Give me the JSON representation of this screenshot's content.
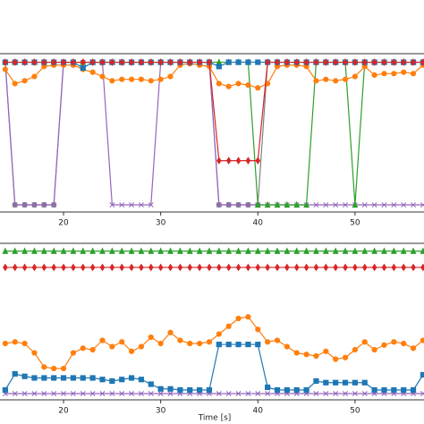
{
  "chart_data": [
    {
      "type": "line",
      "x": [
        14,
        15,
        16,
        17,
        18,
        19,
        20,
        21,
        22,
        23,
        24,
        25,
        26,
        27,
        28,
        29,
        30,
        31,
        32,
        33,
        34,
        35,
        36,
        37,
        38,
        39,
        40,
        41,
        42,
        43,
        44,
        45,
        46,
        47,
        48,
        49,
        50,
        51,
        52,
        53,
        54,
        55,
        56,
        57
      ],
      "xlim": [
        13.46,
        57.1
      ],
      "xticks": [
        20,
        30,
        40,
        50
      ],
      "ylim": [
        -0.05,
        1.06
      ],
      "series": [
        {
          "color": "#7f7f7f",
          "marker": "circle",
          "values": [
            1,
            0,
            0,
            0,
            0,
            0,
            1,
            1,
            1,
            1,
            1,
            1,
            1,
            1,
            1,
            1,
            1,
            1,
            1,
            1,
            1,
            1,
            0,
            0,
            0,
            0,
            0,
            1,
            1,
            1,
            1,
            1,
            1,
            1,
            1,
            1,
            1,
            1,
            1,
            1,
            1,
            1,
            1,
            1
          ]
        },
        {
          "color": "#9467bd",
          "marker": "x",
          "values": [
            1,
            0,
            0,
            0,
            0,
            0,
            1,
            1,
            1,
            1,
            1,
            0,
            0,
            0,
            0,
            0,
            1,
            1,
            1,
            1,
            1,
            1,
            0,
            0,
            0,
            0,
            0,
            0,
            0,
            0,
            0,
            0,
            0,
            0,
            0,
            0,
            0,
            0,
            0,
            0,
            0,
            0,
            0,
            0
          ]
        },
        {
          "color": "#2ca02c",
          "marker": "triangle",
          "values": [
            1,
            1,
            1,
            1,
            1,
            1,
            1,
            1,
            1,
            1,
            1,
            1,
            1,
            1,
            1,
            1,
            1,
            1,
            1,
            1,
            1,
            1,
            1,
            1,
            1,
            1,
            0,
            0,
            0,
            0,
            0,
            0,
            1,
            1,
            1,
            1,
            0,
            1,
            1,
            1,
            1,
            1,
            1,
            1
          ]
        },
        {
          "color": "#ff7f0e",
          "marker": "circle",
          "values": [
            0.95,
            0.85,
            0.87,
            0.9,
            0.97,
            0.98,
            0.98,
            0.98,
            0.95,
            0.93,
            0.9,
            0.87,
            0.88,
            0.88,
            0.88,
            0.87,
            0.88,
            0.9,
            0.98,
            0.99,
            0.98,
            0.97,
            0.85,
            0.83,
            0.85,
            0.84,
            0.82,
            0.85,
            0.97,
            0.98,
            0.98,
            0.97,
            0.87,
            0.88,
            0.87,
            0.88,
            0.9,
            0.97,
            0.91,
            0.92,
            0.92,
            0.93,
            0.92,
            0.98
          ]
        },
        {
          "color": "#1f77b4",
          "marker": "square",
          "values": [
            1,
            1,
            1,
            1,
            1,
            1,
            1,
            1,
            0.96,
            1,
            1,
            1,
            1,
            1,
            1,
            1,
            1,
            1,
            1,
            1,
            1,
            1,
            0.97,
            1,
            1,
            1,
            1,
            1,
            1,
            1,
            1,
            1,
            1,
            1,
            1,
            1,
            1,
            1,
            1,
            1,
            1,
            1,
            1,
            1
          ]
        },
        {
          "color": "#d62728",
          "marker": "diamond",
          "values": [
            1,
            1,
            1,
            1,
            1,
            1,
            1,
            1,
            1,
            1,
            1,
            1,
            1,
            1,
            1,
            1,
            1,
            1,
            1,
            1,
            1,
            1,
            0.31,
            0.31,
            0.31,
            0.31,
            0.31,
            1,
            1,
            1,
            1,
            1,
            1,
            1,
            1,
            1,
            1,
            1,
            1,
            1,
            1,
            1,
            1,
            1
          ]
        }
      ]
    },
    {
      "type": "line",
      "xlabel": "Time [s]",
      "x": [
        14,
        15,
        16,
        17,
        18,
        19,
        20,
        21,
        22,
        23,
        24,
        25,
        26,
        27,
        28,
        29,
        30,
        31,
        32,
        33,
        34,
        35,
        36,
        37,
        38,
        39,
        40,
        41,
        42,
        43,
        44,
        45,
        46,
        47,
        48,
        49,
        50,
        51,
        52,
        53,
        54,
        55,
        56,
        57
      ],
      "xlim": [
        13.46,
        57.1
      ],
      "xticks": [
        20,
        30,
        40,
        50
      ],
      "ylim": [
        0,
        1
      ],
      "series": [
        {
          "color": "#9467bd",
          "marker": "x",
          "values": [
            0.04,
            0.04,
            0.04,
            0.04,
            0.04,
            0.04,
            0.04,
            0.04,
            0.04,
            0.04,
            0.04,
            0.04,
            0.04,
            0.04,
            0.04,
            0.04,
            0.04,
            0.04,
            0.04,
            0.04,
            0.04,
            0.04,
            0.04,
            0.04,
            0.04,
            0.04,
            0.04,
            0.04,
            0.04,
            0.04,
            0.04,
            0.04,
            0.04,
            0.04,
            0.04,
            0.04,
            0.04,
            0.04,
            0.04,
            0.04,
            0.04,
            0.04,
            0.04,
            0.04
          ]
        },
        {
          "color": "#2ca02c",
          "marker": "triangle",
          "values": [
            0.95,
            0.95,
            0.95,
            0.95,
            0.95,
            0.95,
            0.95,
            0.95,
            0.95,
            0.95,
            0.95,
            0.95,
            0.95,
            0.95,
            0.95,
            0.95,
            0.95,
            0.95,
            0.95,
            0.95,
            0.95,
            0.95,
            0.95,
            0.95,
            0.95,
            0.95,
            0.95,
            0.95,
            0.95,
            0.95,
            0.95,
            0.95,
            0.95,
            0.95,
            0.95,
            0.95,
            0.95,
            0.95,
            0.95,
            0.95,
            0.95,
            0.95,
            0.95,
            0.95
          ]
        },
        {
          "color": "#d62728",
          "marker": "diamond",
          "values": [
            0.846,
            0.846,
            0.846,
            0.846,
            0.846,
            0.846,
            0.846,
            0.846,
            0.846,
            0.846,
            0.846,
            0.846,
            0.846,
            0.846,
            0.846,
            0.846,
            0.846,
            0.846,
            0.846,
            0.846,
            0.846,
            0.846,
            0.846,
            0.846,
            0.846,
            0.846,
            0.846,
            0.846,
            0.846,
            0.846,
            0.846,
            0.846,
            0.846,
            0.846,
            0.846,
            0.846,
            0.846,
            0.846,
            0.846,
            0.846,
            0.846,
            0.846,
            0.846,
            0.846
          ]
        },
        {
          "color": "#ff7f0e",
          "marker": "circle",
          "values": [
            0.36,
            0.37,
            0.36,
            0.3,
            0.21,
            0.2,
            0.2,
            0.3,
            0.33,
            0.32,
            0.38,
            0.34,
            0.37,
            0.31,
            0.34,
            0.4,
            0.36,
            0.43,
            0.38,
            0.36,
            0.36,
            0.37,
            0.42,
            0.47,
            0.52,
            0.53,
            0.45,
            0.37,
            0.38,
            0.34,
            0.3,
            0.29,
            0.28,
            0.31,
            0.26,
            0.27,
            0.32,
            0.37,
            0.32,
            0.35,
            0.37,
            0.36,
            0.33,
            0.38
          ]
        },
        {
          "color": "#1f77b4",
          "marker": "square",
          "values": [
            0.063,
            0.166,
            0.15,
            0.14,
            0.14,
            0.14,
            0.14,
            0.14,
            0.14,
            0.14,
            0.13,
            0.12,
            0.13,
            0.14,
            0.13,
            0.1,
            0.07,
            0.07,
            0.063,
            0.063,
            0.063,
            0.063,
            0.354,
            0.354,
            0.354,
            0.354,
            0.354,
            0.08,
            0.063,
            0.063,
            0.063,
            0.063,
            0.12,
            0.11,
            0.11,
            0.11,
            0.11,
            0.11,
            0.063,
            0.063,
            0.063,
            0.063,
            0.063,
            0.16
          ]
        }
      ]
    }
  ]
}
